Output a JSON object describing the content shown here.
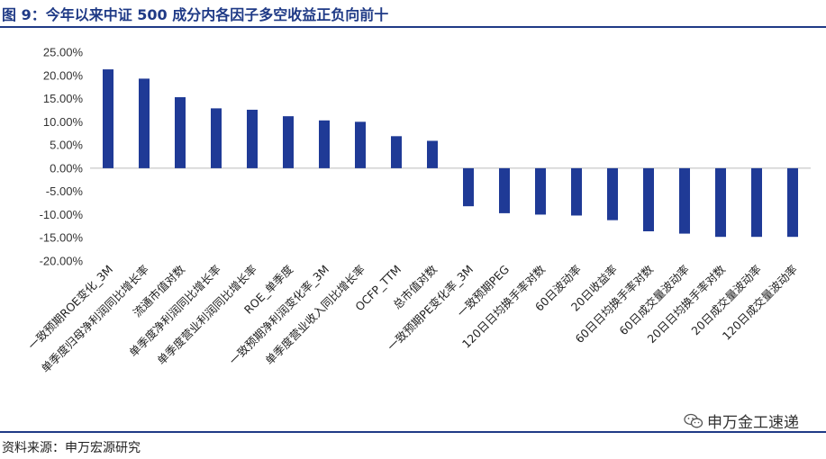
{
  "header": {
    "title": "图 9：今年以来中证 500 成分内各因子多空收益正负向前十"
  },
  "footer": {
    "source": "资料来源：申万宏源研究",
    "watermark": "申万金工速递"
  },
  "icons": {
    "watermark_icon": "wechat-icon"
  },
  "colors": {
    "bar": "#1f3a96",
    "accent": "#1f3a86"
  },
  "chart_data": {
    "type": "bar",
    "title": "今年以来中证 500 成分内各因子多空收益正负向前十",
    "categories": [
      "一致预期ROE变化_3M",
      "单季度归母净利润同比增长率",
      "流通市值对数",
      "单季度净利润同比增长率",
      "单季度营业利润同比增长率",
      "ROE_单季度",
      "一致预期净利润变化率_3M",
      "单季度营业收入同比增长率",
      "OCFP_TTM",
      "总市值对数",
      "一致预期PE变化率_3M",
      "一致预期PEG",
      "120日日均换手率对数",
      "60日波动率",
      "20日收益率",
      "60日日均换手率对数",
      "60日成交量波动率",
      "20日日均换手率对数",
      "20日成交量波动率",
      "120日成交量波动率"
    ],
    "values": [
      0.213,
      0.193,
      0.153,
      0.129,
      0.126,
      0.112,
      0.103,
      0.1,
      0.069,
      0.059,
      -0.082,
      -0.097,
      -0.1,
      -0.102,
      -0.112,
      -0.136,
      -0.141,
      -0.148,
      -0.148,
      -0.148
    ],
    "ylim": [
      -0.2,
      0.25
    ],
    "yticks": [
      0.25,
      0.2,
      0.15,
      0.1,
      0.05,
      0.0,
      -0.05,
      -0.1,
      -0.15,
      -0.2
    ],
    "ytick_labels": [
      "25.00%",
      "20.00%",
      "15.00%",
      "10.00%",
      "5.00%",
      "0.00%",
      "-5.00%",
      "-10.00%",
      "-15.00%",
      "-20.00%"
    ],
    "grid": false,
    "legend": "none"
  }
}
